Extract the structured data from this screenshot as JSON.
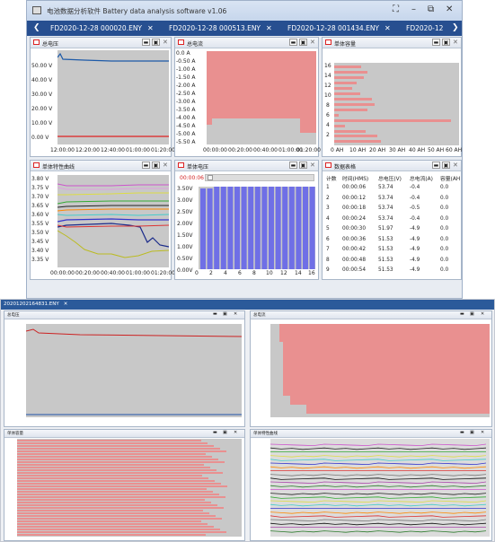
{
  "app": {
    "title": "电池数据分析软件 Battery data analysis software v1.06",
    "window_buttons": [
      "⛶",
      "–",
      "⧉",
      "✕"
    ],
    "nav_left": "❮",
    "nav_right": "❯",
    "tabs": [
      {
        "label": "FD2020-12-28 000020.ENY"
      },
      {
        "label": "FD2020-12-28 000513.ENY"
      },
      {
        "label": "FD2020-12-28 001434.ENY"
      },
      {
        "label": "FD2020-12"
      }
    ],
    "tab_close": "✕"
  },
  "panel_controls": {
    "minimize": "▬",
    "maximize": "▣",
    "close": "✕"
  },
  "panels": {
    "total_voltage": {
      "title": "总电压",
      "y_ticks": [
        "50.00 V",
        "40.00 V",
        "30.00 V",
        "20.00 V",
        "10.00 V",
        "0.00 V"
      ],
      "x_ticks": [
        "12:00:00",
        "12:20:00",
        "12:40:00",
        "01:00:00",
        "01:20:00"
      ]
    },
    "total_current": {
      "title": "总电流",
      "y_ticks": [
        "0.0 A",
        "-0.50 A",
        "-1.00 A",
        "-1.50 A",
        "-2.00 A",
        "-2.50 A",
        "-3.00 A",
        "-3.50 A",
        "-4.00 A",
        "-4.50 A",
        "-5.00 A",
        "-5.50 A"
      ],
      "x_ticks": [
        "00:00:00",
        "00:20:00",
        "00:40:00",
        "01:00:00",
        "01:20:00"
      ]
    },
    "cell_capacity": {
      "title": "单体容量",
      "y_ticks": [
        "16",
        "14",
        "12",
        "10",
        "8",
        "6",
        "4",
        "2"
      ],
      "x_ticks": [
        "0 AH",
        "10 AH",
        "20 AH",
        "30 AH",
        "40 AH",
        "50 AH",
        "60 AH"
      ]
    },
    "cell_curves": {
      "title": "单体特性曲线",
      "y_ticks": [
        "3.80 V",
        "3.75 V",
        "3.70 V",
        "3.65 V",
        "3.60 V",
        "3.55 V",
        "3.50 V",
        "3.45 V",
        "3.40 V",
        "3.35 V",
        "3.30 V",
        "3.25 V",
        "3.20 V",
        "3.15 V",
        "3.10 V",
        "3.05 V",
        "3.00 V",
        "2.95 V",
        "2.90 V"
      ],
      "x_ticks": [
        "00:00:00",
        "00:20:00",
        "00:40:00",
        "01:00:00",
        "01:20:00"
      ]
    },
    "cell_voltage": {
      "title": "单体电压",
      "time": "00:00:06",
      "y_ticks": [
        "3.50V",
        "3.00V",
        "2.50V",
        "2.00V",
        "1.50V",
        "1.00V",
        "0.50V",
        "0.00V"
      ],
      "x_ticks": [
        "0",
        "2",
        "4",
        "6",
        "8",
        "10",
        "12",
        "14",
        "16"
      ]
    },
    "data_table": {
      "title": "数据表格",
      "headers": [
        "计数",
        "时间(HMS)",
        "总电压(V)",
        "总电流(A)",
        "容量(AH"
      ],
      "rows": [
        [
          "1",
          "00:00:06",
          "53.74",
          "-0.4",
          "0.0"
        ],
        [
          "2",
          "00:00:12",
          "53.74",
          "-0.4",
          "0.0"
        ],
        [
          "3",
          "00:00:18",
          "53.74",
          "-0.5",
          "0.0"
        ],
        [
          "4",
          "00:00:24",
          "53.74",
          "-0.4",
          "0.0"
        ],
        [
          "5",
          "00:00:30",
          "51.97",
          "-4.9",
          "0.0"
        ],
        [
          "6",
          "00:00:36",
          "51.53",
          "-4.9",
          "0.0"
        ],
        [
          "7",
          "00:00:42",
          "51.53",
          "-4.9",
          "0.0"
        ],
        [
          "8",
          "00:00:48",
          "51.53",
          "-4.9",
          "0.0"
        ],
        [
          "9",
          "00:00:54",
          "51.53",
          "-4.9",
          "0.0"
        ]
      ]
    }
  },
  "window2": {
    "tab": {
      "label": "20201202164831.ENY"
    },
    "panels": {
      "voltage": {
        "title": "总电压"
      },
      "current": {
        "title": "总电流"
      },
      "capacity": {
        "title": "单体容量"
      },
      "curves": {
        "title": "单体特性曲线"
      }
    }
  },
  "colors": {
    "accent": "#274f90",
    "bar": "#e99090",
    "cell_bar": "#6f6fe6",
    "time_red": "#d22222"
  }
}
